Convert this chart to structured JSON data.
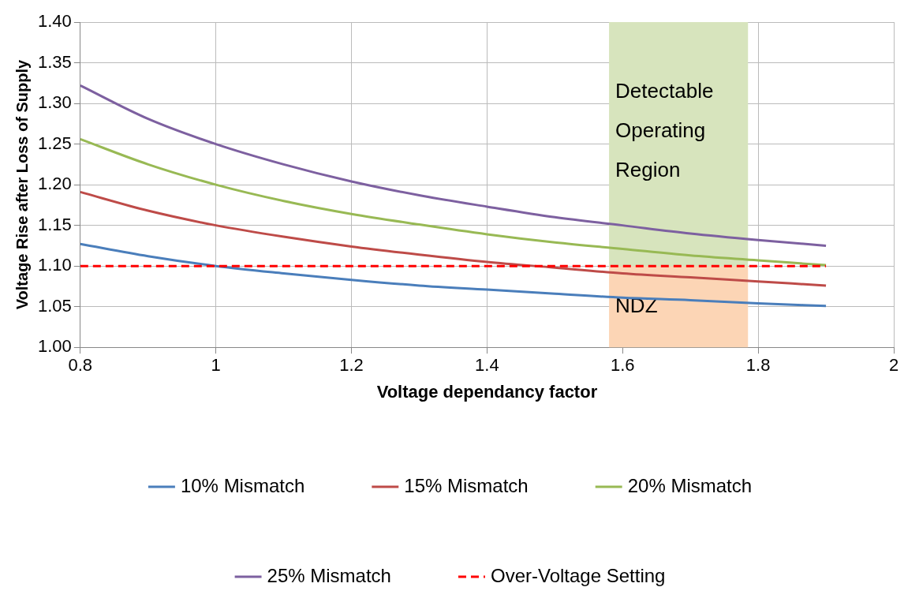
{
  "chart_data": {
    "type": "line",
    "xlabel": "Voltage dependancy factor",
    "ylabel": "Voltage Rise after Loss of Supply",
    "x": [
      0.8,
      0.9,
      1.0,
      1.1,
      1.2,
      1.3,
      1.4,
      1.5,
      1.6,
      1.7,
      1.8,
      1.9
    ],
    "series": [
      {
        "name": "10% Mismatch",
        "color": "#4a7ebb",
        "values": [
          1.127,
          1.112,
          1.1,
          1.091,
          1.083,
          1.076,
          1.071,
          1.066,
          1.061,
          1.058,
          1.054,
          1.051
        ]
      },
      {
        "name": "15% Mismatch",
        "color": "#be4b48",
        "values": [
          1.191,
          1.168,
          1.15,
          1.136,
          1.124,
          1.114,
          1.105,
          1.098,
          1.091,
          1.086,
          1.081,
          1.076
        ]
      },
      {
        "name": "20% Mismatch",
        "color": "#98b954",
        "values": [
          1.256,
          1.225,
          1.2,
          1.18,
          1.164,
          1.151,
          1.139,
          1.129,
          1.121,
          1.113,
          1.107,
          1.101
        ]
      },
      {
        "name": "25% Mismatch",
        "color": "#7d60a0",
        "values": [
          1.322,
          1.281,
          1.25,
          1.225,
          1.204,
          1.187,
          1.173,
          1.16,
          1.15,
          1.14,
          1.132,
          1.125
        ]
      }
    ],
    "ref_lines": [
      {
        "axis": "y",
        "value": 1.1,
        "label": "Over-Voltage Setting",
        "color": "#ff0000",
        "line_style": "dashed"
      }
    ],
    "bands": [
      {
        "axis": "x",
        "from": 1.58,
        "to": 1.785,
        "label": "Detectable Operating Region",
        "color": "#d7e4bd"
      },
      {
        "axis": "x",
        "from": 1.58,
        "to": 1.785,
        "label": "NDZ",
        "color": "#fcd5b5"
      }
    ],
    "xlim": [
      0.8,
      2
    ],
    "xticks": [
      0.8,
      1,
      1.2,
      1.4,
      1.6,
      1.8,
      2
    ],
    "ylim": [
      1.0,
      1.4
    ],
    "yticks": [
      {
        "value": 1.0,
        "label": "1.00"
      },
      {
        "value": 1.05,
        "label": "1.05"
      },
      {
        "value": 1.1,
        "label": "1.10"
      },
      {
        "value": 1.15,
        "label": "1.15"
      },
      {
        "value": 1.2,
        "label": "1.20"
      },
      {
        "value": 1.25,
        "label": "1.25"
      },
      {
        "value": 1.3,
        "label": "1.30"
      },
      {
        "value": 1.35,
        "label": "1.35"
      },
      {
        "value": 1.4,
        "label": "1.40"
      }
    ],
    "grid": true,
    "legend": "bottom",
    "marker": "none",
    "line_style": "solid"
  }
}
